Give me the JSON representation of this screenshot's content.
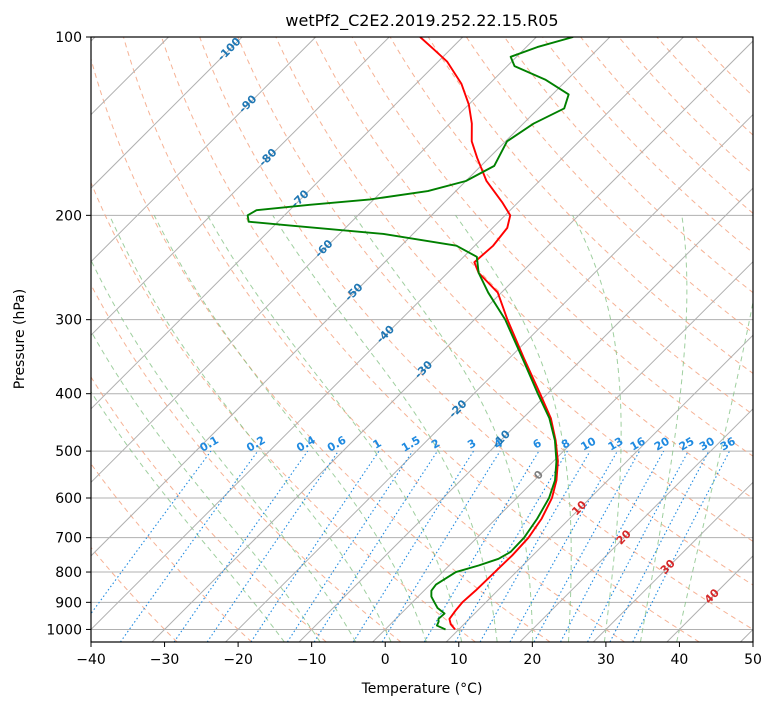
{
  "chart_data": {
    "type": "skew-t",
    "title": "wetPf2_C2E2.2019.252.22.15.R05",
    "xlabel": "Temperature (°C)",
    "ylabel": "Pressure (hPa)",
    "xlim": [
      -40,
      50
    ],
    "ylim": [
      1050,
      100
    ],
    "x_ticks": [
      -40,
      -30,
      -20,
      -10,
      0,
      10,
      20,
      30,
      40,
      50
    ],
    "y_ticks": [
      100,
      200,
      300,
      400,
      500,
      600,
      700,
      800,
      900,
      1000
    ],
    "series": [
      {
        "name": "temperature",
        "color": "#ff0000",
        "points": [
          [
            1000,
            9.5
          ],
          [
            980,
            8.2
          ],
          [
            960,
            7.3
          ],
          [
            930,
            7.0
          ],
          [
            900,
            6.8
          ],
          [
            860,
            7.0
          ],
          [
            800,
            7.1
          ],
          [
            750,
            7.2
          ],
          [
            700,
            7.0
          ],
          [
            650,
            6.2
          ],
          [
            600,
            4.8
          ],
          [
            560,
            3.0
          ],
          [
            520,
            0.6
          ],
          [
            480,
            -2.5
          ],
          [
            440,
            -6.2
          ],
          [
            400,
            -11.0
          ],
          [
            350,
            -17.8
          ],
          [
            300,
            -25.5
          ],
          [
            270,
            -30.5
          ],
          [
            250,
            -35.8
          ],
          [
            240,
            -37.8
          ],
          [
            225,
            -37.5
          ],
          [
            210,
            -38.0
          ],
          [
            200,
            -39.3
          ],
          [
            190,
            -42.2
          ],
          [
            175,
            -47.2
          ],
          [
            160,
            -51.6
          ],
          [
            150,
            -54.6
          ],
          [
            140,
            -57.0
          ],
          [
            130,
            -60.0
          ],
          [
            120,
            -63.8
          ],
          [
            110,
            -68.8
          ],
          [
            105,
            -72.2
          ],
          [
            100,
            -75.8
          ]
        ]
      },
      {
        "name": "dewpoint",
        "color": "#008000",
        "points": [
          [
            1000,
            8.2
          ],
          [
            985,
            6.5
          ],
          [
            970,
            6.2
          ],
          [
            960,
            5.8
          ],
          [
            940,
            5.9
          ],
          [
            920,
            4.2
          ],
          [
            900,
            3.0
          ],
          [
            880,
            1.8
          ],
          [
            860,
            1.0
          ],
          [
            840,
            0.8
          ],
          [
            800,
            1.8
          ],
          [
            780,
            4.0
          ],
          [
            760,
            5.8
          ],
          [
            740,
            6.5
          ],
          [
            700,
            6.4
          ],
          [
            650,
            5.6
          ],
          [
            600,
            4.4
          ],
          [
            560,
            2.8
          ],
          [
            520,
            0.4
          ],
          [
            480,
            -2.6
          ],
          [
            440,
            -6.4
          ],
          [
            400,
            -11.3
          ],
          [
            350,
            -18.0
          ],
          [
            300,
            -25.8
          ],
          [
            270,
            -31.8
          ],
          [
            250,
            -35.8
          ],
          [
            235,
            -38.2
          ],
          [
            225,
            -42.5
          ],
          [
            215,
            -54.0
          ],
          [
            208,
            -68.0
          ],
          [
            205,
            -74.0
          ],
          [
            200,
            -75.0
          ],
          [
            196,
            -74.5
          ],
          [
            192,
            -68.0
          ],
          [
            188,
            -60.5
          ],
          [
            182,
            -53.8
          ],
          [
            175,
            -50.0
          ],
          [
            165,
            -48.2
          ],
          [
            150,
            -49.8
          ],
          [
            140,
            -48.6
          ],
          [
            132,
            -46.5
          ],
          [
            125,
            -47.8
          ],
          [
            118,
            -53.0
          ],
          [
            112,
            -59.0
          ],
          [
            108,
            -60.8
          ],
          [
            104,
            -58.5
          ],
          [
            100,
            -55.0
          ]
        ]
      }
    ],
    "dry_adiabats_C": [
      -30,
      -20,
      -10,
      0,
      10,
      20,
      30,
      40,
      50,
      60,
      70,
      80,
      90,
      100,
      110,
      120,
      130,
      140,
      150,
      160,
      170,
      180
    ],
    "moist_adiabats_C": [
      -15,
      -10,
      -5,
      0,
      5,
      10,
      15,
      20,
      25,
      30,
      35,
      40
    ],
    "mixing_ratio_lines": [
      {
        "value": 0.1,
        "label": "0.1"
      },
      {
        "value": 0.2,
        "label": "0.2"
      },
      {
        "value": 0.4,
        "label": "0.4"
      },
      {
        "value": 0.6,
        "label": "0.6"
      },
      {
        "value": 1,
        "label": "1"
      },
      {
        "value": 1.5,
        "label": "1.5"
      },
      {
        "value": 2,
        "label": "2"
      },
      {
        "value": 3,
        "label": "3"
      },
      {
        "value": 4,
        "label": "4"
      },
      {
        "value": 6,
        "label": "6"
      },
      {
        "value": 8,
        "label": "8"
      },
      {
        "value": 10,
        "label": "10"
      },
      {
        "value": 13,
        "label": "13"
      },
      {
        "value": 16,
        "label": "16"
      },
      {
        "value": 20,
        "label": "20"
      },
      {
        "value": 25,
        "label": "25"
      },
      {
        "value": 30,
        "label": "30"
      },
      {
        "value": 36,
        "label": "36"
      }
    ],
    "isotherm_labels": [
      {
        "label": "-100",
        "color": "#1f77b4",
        "pos": [
          105,
          -100
        ]
      },
      {
        "label": "-90",
        "color": "#1f77b4",
        "pos": [
          130,
          -90
        ]
      },
      {
        "label": "-80",
        "color": "#1f77b4",
        "pos": [
          160,
          -80
        ]
      },
      {
        "label": "-70",
        "color": "#1f77b4",
        "pos": [
          188,
          -70
        ]
      },
      {
        "label": "-60",
        "color": "#1f77b4",
        "pos": [
          228,
          -60
        ]
      },
      {
        "label": "-50",
        "color": "#1f77b4",
        "pos": [
          270,
          -50
        ]
      },
      {
        "label": "-40",
        "color": "#1f77b4",
        "pos": [
          318,
          -40
        ]
      },
      {
        "label": "-30",
        "color": "#1f77b4",
        "pos": [
          365,
          -30
        ]
      },
      {
        "label": "-20",
        "color": "#1f77b4",
        "pos": [
          425,
          -20
        ]
      },
      {
        "label": "-10",
        "color": "#1f77b4",
        "pos": [
          478,
          -10
        ]
      },
      {
        "label": "0",
        "color": "#808080",
        "pos": [
          550,
          0
        ]
      },
      {
        "label": "10",
        "color": "#d62728",
        "pos": [
          625,
          10
        ]
      },
      {
        "label": "20",
        "color": "#d62728",
        "pos": [
          700,
          20
        ]
      },
      {
        "label": "30",
        "color": "#d62728",
        "pos": [
          785,
          30
        ]
      },
      {
        "label": "40",
        "color": "#d62728",
        "pos": [
          880,
          40
        ]
      }
    ]
  }
}
